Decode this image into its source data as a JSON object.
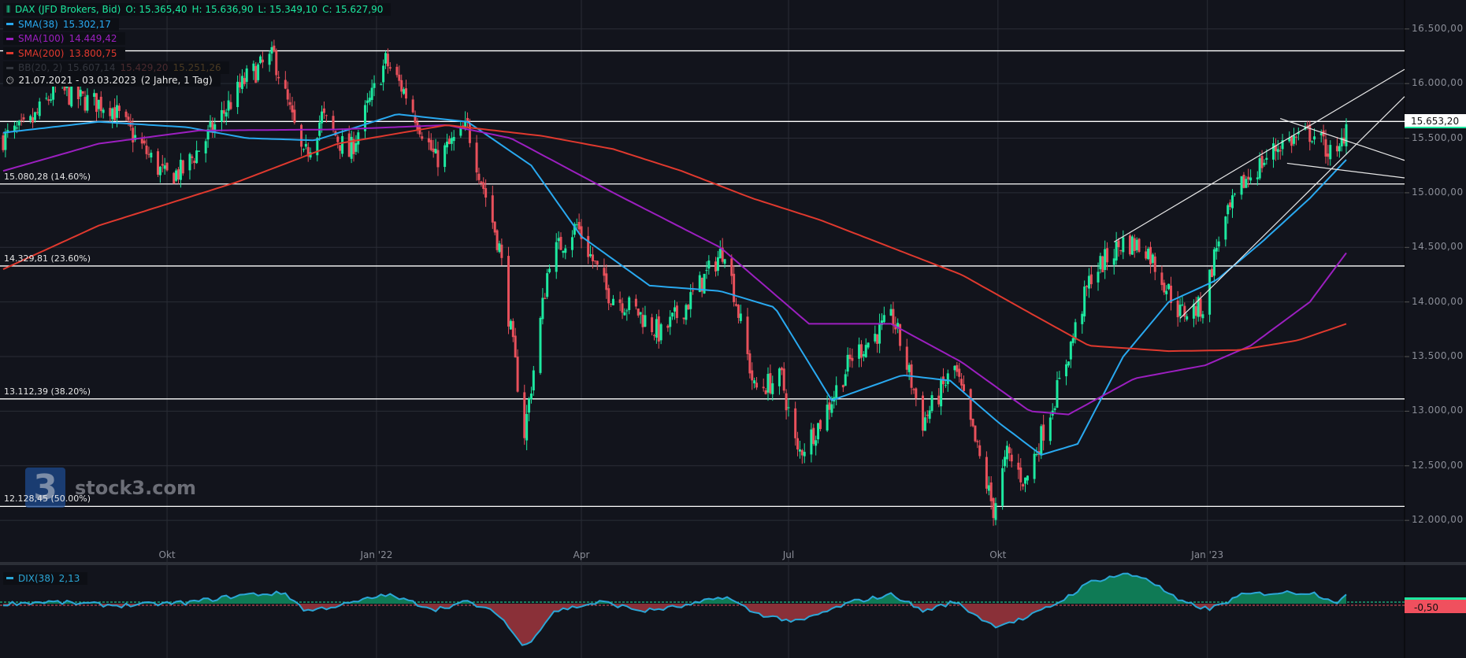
{
  "legend": {
    "instrument": "DAX (JFD Brokers, Bid)",
    "ohlc": {
      "O": "O: 15.365,40",
      "H": "H: 15.636,90",
      "L": "L: 15.349,10",
      "C": "C: 15.627,90"
    },
    "indicators": [
      {
        "name": "SMA(38)",
        "value": "15.302,17",
        "color": "#29a9f0"
      },
      {
        "name": "SMA(100)",
        "value": "14.449,42",
        "color": "#9c1fc0"
      },
      {
        "name": "SMA(200)",
        "value": "13.800,75",
        "color": "#e0392e"
      }
    ],
    "bb": {
      "name": "BB(20, 2)",
      "upper": "15.607,14",
      "middle": "15.429,20",
      "lower": "15.251,26"
    },
    "range": "21.07.2021 - 03.03.2023",
    "range_note": "(2 Jahre, 1 Tag)"
  },
  "watermark": {
    "logo": "3",
    "text": "stock3.com"
  },
  "current_price": "15.653,20",
  "dix": {
    "name": "DIX(38)",
    "value": "2,13",
    "tag": "-0,50"
  },
  "colors": {
    "background": "#12141c",
    "grid": "#2a2d36",
    "up": "#1de9a0",
    "down": "#e8505b",
    "dix_line": "#2ba6d6",
    "dix_pos": "#0f7a55",
    "dix_neg": "#8a3038"
  },
  "chart_data": {
    "type": "candlestick",
    "x_range": [
      "2021-07-21",
      "2023-03-03"
    ],
    "ylim": [
      11700,
      16750
    ],
    "y_ticks": [
      "16.500,00",
      "16.000,00",
      "15.500,00",
      "15.000,00",
      "14.500,00",
      "14.000,00",
      "13.500,00",
      "13.000,00",
      "12.500,00",
      "12.000,00"
    ],
    "y_tick_values": [
      16500,
      16000,
      15500,
      15000,
      14500,
      14000,
      13500,
      13000,
      12500,
      12000
    ],
    "x_ticks": [
      {
        "label": "Okt",
        "date": "2021-10-01"
      },
      {
        "label": "Jan '22",
        "date": "2022-01-01"
      },
      {
        "label": "Apr",
        "date": "2022-04-01"
      },
      {
        "label": "Jul",
        "date": "2022-07-01"
      },
      {
        "label": "Okt",
        "date": "2022-10-01"
      },
      {
        "label": "Jan '23",
        "date": "2023-01-01"
      }
    ],
    "close_path": [
      [
        "2021-07-21",
        15500
      ],
      [
        "2021-08-01",
        15600
      ],
      [
        "2021-08-13",
        15950
      ],
      [
        "2021-08-25",
        15850
      ],
      [
        "2021-09-06",
        15800
      ],
      [
        "2021-09-17",
        15500
      ],
      [
        "2021-09-30",
        15150
      ],
      [
        "2021-10-08",
        15200
      ],
      [
        "2021-10-20",
        15550
      ],
      [
        "2021-11-05",
        16050
      ],
      [
        "2021-11-17",
        16250
      ],
      [
        "2021-11-30",
        15300
      ],
      [
        "2021-12-08",
        15700
      ],
      [
        "2021-12-20",
        15350
      ],
      [
        "2022-01-05",
        16200
      ],
      [
        "2022-01-14",
        15900
      ],
      [
        "2022-01-27",
        15300
      ],
      [
        "2022-02-10",
        15600
      ],
      [
        "2022-02-24",
        14500
      ],
      [
        "2022-03-07",
        12800
      ],
      [
        "2022-03-18",
        14400
      ],
      [
        "2022-03-30",
        14700
      ],
      [
        "2022-04-12",
        14100
      ],
      [
        "2022-04-26",
        13900
      ],
      [
        "2022-05-06",
        13700
      ],
      [
        "2022-05-18",
        14000
      ],
      [
        "2022-06-03",
        14500
      ],
      [
        "2022-06-16",
        13200
      ],
      [
        "2022-06-28",
        13300
      ],
      [
        "2022-07-05",
        12600
      ],
      [
        "2022-07-15",
        12900
      ],
      [
        "2022-07-29",
        13500
      ],
      [
        "2022-08-16",
        13850
      ],
      [
        "2022-08-29",
        12900
      ],
      [
        "2022-09-12",
        13400
      ],
      [
        "2022-09-29",
        12100
      ],
      [
        "2022-10-05",
        12600
      ],
      [
        "2022-10-13",
        12350
      ],
      [
        "2022-10-28",
        13250
      ],
      [
        "2022-11-11",
        14250
      ],
      [
        "2022-11-25",
        14550
      ],
      [
        "2022-12-05",
        14500
      ],
      [
        "2022-12-20",
        13900
      ],
      [
        "2022-12-30",
        13950
      ],
      [
        "2023-01-06",
        14600
      ],
      [
        "2023-01-17",
        15100
      ],
      [
        "2023-02-02",
        15450
      ],
      [
        "2023-02-16",
        15550
      ],
      [
        "2023-02-27",
        15300
      ],
      [
        "2023-03-03",
        15628
      ]
    ],
    "series": [
      {
        "name": "SMA(38)",
        "color": "#29a9f0",
        "points": [
          [
            "2021-07-21",
            15550
          ],
          [
            "2021-09-01",
            15650
          ],
          [
            "2021-10-10",
            15600
          ],
          [
            "2021-11-05",
            15500
          ],
          [
            "2021-12-05",
            15480
          ],
          [
            "2022-01-10",
            15720
          ],
          [
            "2022-02-10",
            15650
          ],
          [
            "2022-03-10",
            15250
          ],
          [
            "2022-04-01",
            14600
          ],
          [
            "2022-05-01",
            14150
          ],
          [
            "2022-06-01",
            14100
          ],
          [
            "2022-06-25",
            13950
          ],
          [
            "2022-07-20",
            13100
          ],
          [
            "2022-08-20",
            13330
          ],
          [
            "2022-09-10",
            13280
          ],
          [
            "2022-10-01",
            12900
          ],
          [
            "2022-10-20",
            12600
          ],
          [
            "2022-11-05",
            12700
          ],
          [
            "2022-11-25",
            13500
          ],
          [
            "2022-12-15",
            14000
          ],
          [
            "2023-01-05",
            14200
          ],
          [
            "2023-01-25",
            14550
          ],
          [
            "2023-02-15",
            14950
          ],
          [
            "2023-03-03",
            15302
          ]
        ]
      },
      {
        "name": "SMA(100)",
        "color": "#9c1fc0",
        "points": [
          [
            "2021-07-21",
            15200
          ],
          [
            "2021-09-01",
            15450
          ],
          [
            "2021-10-15",
            15570
          ],
          [
            "2021-12-15",
            15580
          ],
          [
            "2022-02-01",
            15620
          ],
          [
            "2022-03-01",
            15500
          ],
          [
            "2022-04-15",
            15000
          ],
          [
            "2022-06-01",
            14500
          ],
          [
            "2022-07-10",
            13800
          ],
          [
            "2022-08-15",
            13800
          ],
          [
            "2022-09-15",
            13450
          ],
          [
            "2022-10-15",
            13000
          ],
          [
            "2022-11-01",
            12970
          ],
          [
            "2022-11-30",
            13300
          ],
          [
            "2022-12-31",
            13420
          ],
          [
            "2023-01-20",
            13600
          ],
          [
            "2023-02-15",
            14000
          ],
          [
            "2023-03-03",
            14449
          ]
        ]
      },
      {
        "name": "SMA(200)",
        "color": "#e0392e",
        "points": [
          [
            "2021-07-21",
            14300
          ],
          [
            "2021-09-01",
            14700
          ],
          [
            "2021-11-01",
            15100
          ],
          [
            "2021-12-15",
            15450
          ],
          [
            "2022-02-01",
            15620
          ],
          [
            "2022-03-15",
            15520
          ],
          [
            "2022-04-15",
            15400
          ],
          [
            "2022-05-15",
            15200
          ],
          [
            "2022-06-15",
            14950
          ],
          [
            "2022-07-15",
            14750
          ],
          [
            "2022-08-15",
            14500
          ],
          [
            "2022-09-15",
            14250
          ],
          [
            "2022-10-15",
            13900
          ],
          [
            "2022-11-10",
            13600
          ],
          [
            "2022-12-15",
            13550
          ],
          [
            "2023-01-15",
            13560
          ],
          [
            "2023-02-10",
            13650
          ],
          [
            "2023-03-03",
            13800
          ]
        ]
      }
    ],
    "fib_levels": [
      {
        "price": 16300,
        "label": ""
      },
      {
        "price": 15653,
        "label": ""
      },
      {
        "price": 15080.28,
        "label": "15.080,28 (14.60%)"
      },
      {
        "price": 14329.81,
        "label": "14.329,81 (23.60%)"
      },
      {
        "price": 13112.39,
        "label": "13.112,39 (38.20%)"
      },
      {
        "price": 12128.45,
        "label": "12.128,45 (50.00%)"
      }
    ],
    "trendlines": [
      [
        [
          "2022-11-21",
          14550
        ],
        [
          "2023-03-31",
          16160
        ]
      ],
      [
        [
          "2022-12-20",
          13850
        ],
        [
          "2023-03-31",
          15930
        ]
      ],
      [
        [
          "2023-02-02",
          15680
        ],
        [
          "2023-03-31",
          15280
        ]
      ],
      [
        [
          "2023-02-05",
          15270
        ],
        [
          "2023-03-31",
          15130
        ]
      ]
    ],
    "dix_path": [
      [
        "2021-07-21",
        0
      ],
      [
        "2021-08-10",
        0.5
      ],
      [
        "2021-09-10",
        -0.5
      ],
      [
        "2021-10-10",
        0.3
      ],
      [
        "2021-11-05",
        2.5
      ],
      [
        "2021-11-22",
        2.8
      ],
      [
        "2021-12-01",
        -2
      ],
      [
        "2021-12-20",
        0
      ],
      [
        "2022-01-05",
        2.5
      ],
      [
        "2022-01-27",
        -1.5
      ],
      [
        "2022-02-10",
        0.5
      ],
      [
        "2022-02-24",
        -3
      ],
      [
        "2022-03-07",
        -12
      ],
      [
        "2022-03-20",
        -2
      ],
      [
        "2022-04-10",
        0.5
      ],
      [
        "2022-04-28",
        -2
      ],
      [
        "2022-05-18",
        -0.5
      ],
      [
        "2022-06-03",
        2
      ],
      [
        "2022-06-16",
        -2.5
      ],
      [
        "2022-07-05",
        -5
      ],
      [
        "2022-07-29",
        0.5
      ],
      [
        "2022-08-16",
        2.5
      ],
      [
        "2022-08-29",
        -2
      ],
      [
        "2022-09-12",
        0.5
      ],
      [
        "2022-09-29",
        -6
      ],
      [
        "2022-10-13",
        -4
      ],
      [
        "2022-10-28",
        0.5
      ],
      [
        "2022-11-11",
        6
      ],
      [
        "2022-11-25",
        8
      ],
      [
        "2022-12-05",
        7
      ],
      [
        "2022-12-20",
        0.5
      ],
      [
        "2023-01-02",
        -1.5
      ],
      [
        "2023-01-17",
        2.5
      ],
      [
        "2023-02-02",
        3
      ],
      [
        "2023-02-16",
        3
      ],
      [
        "2023-02-27",
        0.5
      ],
      [
        "2023-03-03",
        2.13
      ]
    ]
  }
}
